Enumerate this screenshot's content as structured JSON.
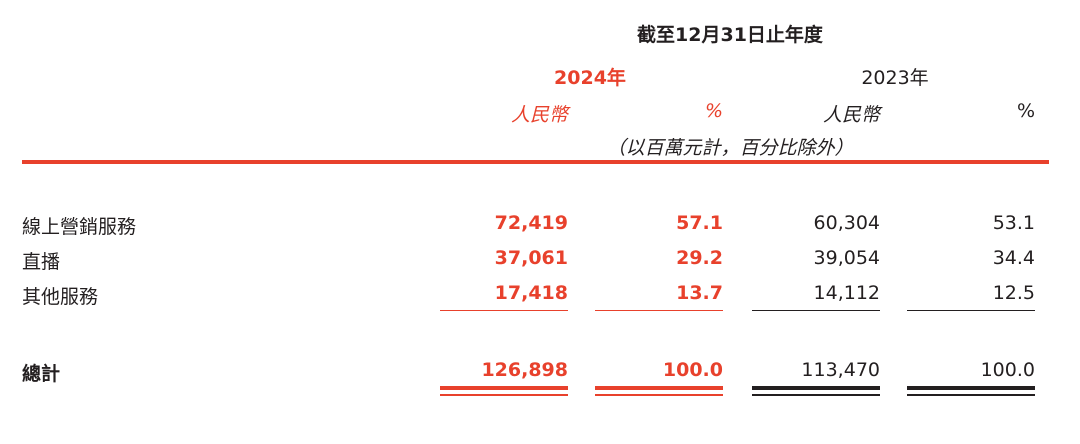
{
  "header": {
    "period_label": "截至12月31日止年度",
    "year_current": "2024年",
    "year_prior": "2023年",
    "unit_rmb": "人民幣",
    "unit_pct": "%",
    "note": "（以百萬元計，百分比除外）"
  },
  "rows": [
    {
      "label": "線上營銷服務",
      "rmb_2024": "72,419",
      "pct_2024": "57.1",
      "rmb_2023": "60,304",
      "pct_2023": "53.1"
    },
    {
      "label": "直播",
      "rmb_2024": "37,061",
      "pct_2024": "29.2",
      "rmb_2023": "39,054",
      "pct_2023": "34.4"
    },
    {
      "label": "其他服務",
      "rmb_2024": "17,418",
      "pct_2024": "13.7",
      "rmb_2023": "14,112",
      "pct_2023": "12.5"
    }
  ],
  "total": {
    "label": "總計",
    "rmb_2024": "126,898",
    "pct_2024": "100.0",
    "rmb_2023": "113,470",
    "pct_2023": "100.0"
  },
  "colors": {
    "accent": "#e8412c",
    "text": "#231f20"
  }
}
